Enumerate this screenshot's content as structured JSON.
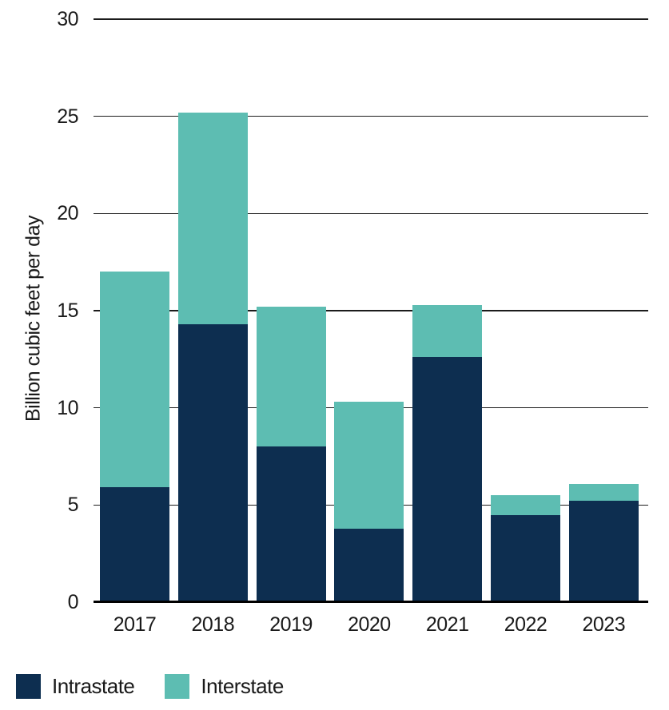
{
  "chart_data": {
    "type": "bar",
    "stacked": true,
    "title": "",
    "categories": [
      "2017",
      "2018",
      "2019",
      "2020",
      "2021",
      "2022",
      "2023"
    ],
    "series": [
      {
        "name": "Intrastate",
        "color": "#0d2e50",
        "values": [
          5.9,
          14.3,
          8.0,
          3.8,
          12.6,
          4.5,
          5.2
        ]
      },
      {
        "name": "Interstate",
        "color": "#5dbdb2",
        "values": [
          11.1,
          10.9,
          7.2,
          6.5,
          2.7,
          1.0,
          0.9
        ]
      }
    ],
    "stack_totals": [
      17.0,
      25.2,
      15.2,
      10.3,
      15.3,
      5.5,
      6.1
    ],
    "xlabel": "",
    "ylabel": "Billion cubic feet per day",
    "ylim": [
      0,
      30
    ],
    "yticks": [
      0,
      5,
      10,
      15,
      20,
      25,
      30
    ],
    "grid": true,
    "legend_position": "bottom-left",
    "legend": [
      "Intrastate",
      "Interstate"
    ]
  }
}
